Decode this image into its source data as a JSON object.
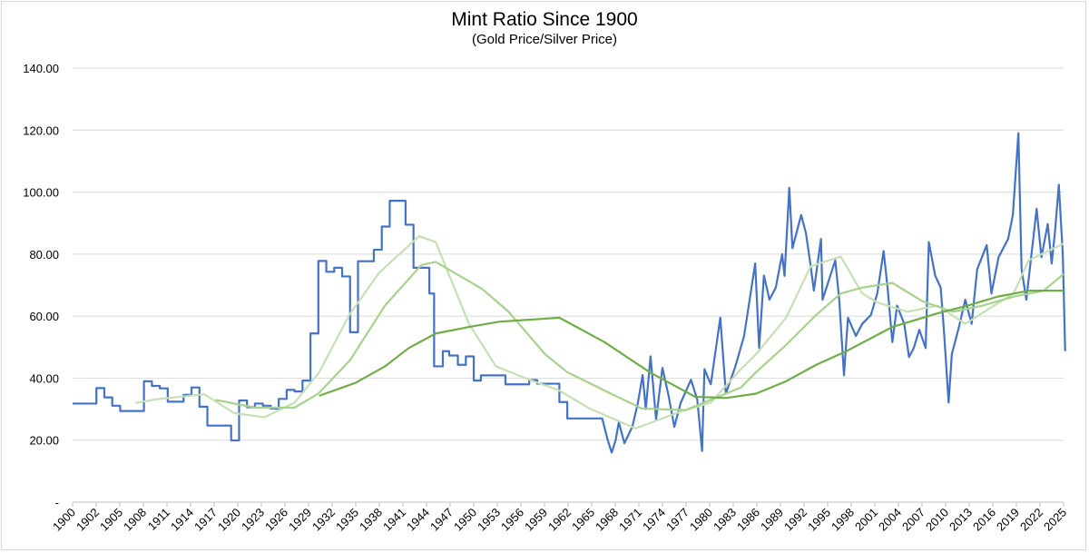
{
  "chart_data": {
    "type": "line",
    "title": "Mint Ratio Since 1900",
    "subtitle": "(Gold Price/Silver Price)",
    "xlabel": "",
    "ylabel": "",
    "ylim": [
      0,
      140
    ],
    "y_ticks": [
      "-",
      "20.00",
      "40.00",
      "60.00",
      "80.00",
      "100.00",
      "120.00",
      "140.00"
    ],
    "x_ticks": [
      "1900",
      "1902",
      "1905",
      "1908",
      "1911",
      "1914",
      "1917",
      "1920",
      "1923",
      "1926",
      "1929",
      "1932",
      "1935",
      "1938",
      "1941",
      "1944",
      "1947",
      "1950",
      "1953",
      "1956",
      "1959",
      "1962",
      "1965",
      "1968",
      "1971",
      "1974",
      "1977",
      "1980",
      "1983",
      "1986",
      "1989",
      "1992",
      "1995",
      "1998",
      "2001",
      "2004",
      "2007",
      "2010",
      "2013",
      "2016",
      "2019",
      "2022",
      "2025"
    ],
    "xlim": [
      1900,
      2025
    ],
    "grid": true,
    "legend": "none",
    "series": [
      {
        "color": "#4472C4",
        "step_until": 1967,
        "points": [
          [
            1900,
            31.8
          ],
          [
            1903,
            36.8
          ],
          [
            1904,
            33.8
          ],
          [
            1905,
            31.1
          ],
          [
            1906,
            29.4
          ],
          [
            1909,
            39.0
          ],
          [
            1910,
            37.5
          ],
          [
            1911,
            36.7
          ],
          [
            1912,
            32.4
          ],
          [
            1914,
            34.6
          ],
          [
            1915,
            37.0
          ],
          [
            1916,
            30.8
          ],
          [
            1917,
            24.7
          ],
          [
            1920,
            19.9
          ],
          [
            1921,
            32.8
          ],
          [
            1922,
            30.6
          ],
          [
            1923,
            31.8
          ],
          [
            1924,
            31.1
          ],
          [
            1925,
            30.2
          ],
          [
            1926,
            33.3
          ],
          [
            1927,
            36.2
          ],
          [
            1928,
            35.7
          ],
          [
            1929,
            39.2
          ],
          [
            1930,
            54.4
          ],
          [
            1931,
            77.8
          ],
          [
            1932,
            74.3
          ],
          [
            1933,
            75.6
          ],
          [
            1934,
            72.8
          ],
          [
            1935,
            54.8
          ],
          [
            1936,
            77.7
          ],
          [
            1938,
            81.4
          ],
          [
            1939,
            88.9
          ],
          [
            1940,
            97.2
          ],
          [
            1942,
            89.5
          ],
          [
            1943,
            75.6
          ],
          [
            1945,
            67.3
          ],
          [
            1945.6,
            43.8
          ],
          [
            1946.7,
            48.7
          ],
          [
            1947.5,
            47.3
          ],
          [
            1948.6,
            44.3
          ],
          [
            1949.6,
            47.0
          ],
          [
            1950.6,
            39.2
          ],
          [
            1951.5,
            40.9
          ],
          [
            1954.6,
            38.0
          ],
          [
            1957.6,
            39.4
          ],
          [
            1958.6,
            38.2
          ],
          [
            1961.4,
            32.3
          ],
          [
            1962.4,
            27.0
          ],
          [
            1966.8,
            27.0
          ],
          [
            1967.5,
            20
          ],
          [
            1968,
            16.0
          ],
          [
            1968.5,
            20
          ],
          [
            1968.9,
            25.8
          ],
          [
            1969.6,
            19.0
          ],
          [
            1970.6,
            24.3
          ],
          [
            1971.3,
            32
          ],
          [
            1971.9,
            41
          ],
          [
            1972.3,
            30
          ],
          [
            1972.9,
            47
          ],
          [
            1973.6,
            26.7
          ],
          [
            1974.4,
            43.3
          ],
          [
            1975.2,
            34
          ],
          [
            1975.9,
            24.3
          ],
          [
            1976.7,
            32
          ],
          [
            1978,
            39.5
          ],
          [
            1978.8,
            33
          ],
          [
            1979.4,
            16.5
          ],
          [
            1979.7,
            42.9
          ],
          [
            1980.5,
            38
          ],
          [
            1981.7,
            59.5
          ],
          [
            1982.4,
            35
          ],
          [
            1983.6,
            43.8
          ],
          [
            1984.7,
            53.6
          ],
          [
            1986.1,
            77
          ],
          [
            1986.6,
            49.7
          ],
          [
            1987.2,
            73.1
          ],
          [
            1987.9,
            65.3
          ],
          [
            1988.7,
            69.2
          ],
          [
            1989.5,
            80
          ],
          [
            1989.8,
            73
          ],
          [
            1990.4,
            101.4
          ],
          [
            1990.8,
            81.9
          ],
          [
            1991.9,
            92.6
          ],
          [
            1992.5,
            86.8
          ],
          [
            1993.1,
            76.1
          ],
          [
            1993.5,
            68.2
          ],
          [
            1994.4,
            84.9
          ],
          [
            1994.6,
            65.3
          ],
          [
            1996.2,
            78
          ],
          [
            1996.7,
            65.3
          ],
          [
            1997.3,
            40.9
          ],
          [
            1997.8,
            59.5
          ],
          [
            1998.8,
            53.6
          ],
          [
            1999.6,
            57.5
          ],
          [
            2000.7,
            60.4
          ],
          [
            2001.5,
            67.3
          ],
          [
            2002.3,
            81
          ],
          [
            2002.8,
            69.2
          ],
          [
            2003.4,
            51.6
          ],
          [
            2004,
            63.4
          ],
          [
            2004.9,
            57.5
          ],
          [
            2005.5,
            46.8
          ],
          [
            2006.1,
            49.7
          ],
          [
            2006.8,
            55.6
          ],
          [
            2007.6,
            49.7
          ],
          [
            2008,
            83.9
          ],
          [
            2008.8,
            73.1
          ],
          [
            2009.5,
            69.2
          ],
          [
            2009.9,
            55.6
          ],
          [
            2010.5,
            32.1
          ],
          [
            2010.9,
            47.7
          ],
          [
            2011.8,
            56.5
          ],
          [
            2012.6,
            65.3
          ],
          [
            2013.4,
            57.5
          ],
          [
            2014.1,
            75.1
          ],
          [
            2015.3,
            82.9
          ],
          [
            2015.9,
            67.3
          ],
          [
            2016.8,
            79
          ],
          [
            2018,
            84.9
          ],
          [
            2018.6,
            92.6
          ],
          [
            2019.3,
            119
          ],
          [
            2019.7,
            75.1
          ],
          [
            2020.3,
            65.3
          ],
          [
            2021.6,
            94.6
          ],
          [
            2022.2,
            79
          ],
          [
            2023,
            89.7
          ],
          [
            2023.5,
            77
          ],
          [
            2023.9,
            86.8
          ],
          [
            2024.4,
            102.4
          ],
          [
            2024.9,
            80
          ],
          [
            2025.2,
            48.7
          ]
        ]
      },
      {
        "color": "#C5E0B4",
        "points": [
          [
            1907.9,
            32
          ],
          [
            1910.9,
            33.3
          ],
          [
            1916.6,
            34.8
          ],
          [
            1920.4,
            28.7
          ],
          [
            1924.2,
            27.4
          ],
          [
            1928,
            32.1
          ],
          [
            1931.1,
            41.9
          ],
          [
            1934.9,
            60.4
          ],
          [
            1938.7,
            74.1
          ],
          [
            1943.7,
            85.8
          ],
          [
            1945.8,
            83.9
          ],
          [
            1950,
            57.5
          ],
          [
            1953.4,
            43.8
          ],
          [
            1957.6,
            39.5
          ],
          [
            1961.4,
            36
          ],
          [
            1965.2,
            30.2
          ],
          [
            1971,
            23.8
          ],
          [
            1976.7,
            29.2
          ],
          [
            1980.5,
            32.1
          ],
          [
            1984.3,
            42.9
          ],
          [
            1986.2,
            47.7
          ],
          [
            1990,
            59.5
          ],
          [
            1993.1,
            76.1
          ],
          [
            1996.9,
            79.2
          ],
          [
            1999.6,
            67.3
          ],
          [
            2001.5,
            64.4
          ],
          [
            2005.3,
            61.4
          ],
          [
            2009.1,
            63.4
          ],
          [
            2012.6,
            57.5
          ],
          [
            2015.6,
            62.4
          ],
          [
            2018.7,
            67.3
          ],
          [
            2020.6,
            78
          ],
          [
            2025,
            83.4
          ]
        ]
      },
      {
        "color": "#A9D18E",
        "points": [
          [
            1918,
            33
          ],
          [
            1923,
            30.5
          ],
          [
            1928,
            30.5
          ],
          [
            1931,
            35
          ],
          [
            1935,
            45.8
          ],
          [
            1939.4,
            63.4
          ],
          [
            1944,
            76.5
          ],
          [
            1945.8,
            77.5
          ],
          [
            1951.7,
            68.7
          ],
          [
            1955,
            61.4
          ],
          [
            1959.6,
            47.7
          ],
          [
            1962.4,
            41.9
          ],
          [
            1967.9,
            35
          ],
          [
            1971.8,
            30.2
          ],
          [
            1977.3,
            29.7
          ],
          [
            1980.5,
            33
          ],
          [
            1984.3,
            37
          ],
          [
            1986.2,
            41.9
          ],
          [
            1990,
            50.7
          ],
          [
            1993.8,
            60.4
          ],
          [
            1996.9,
            67.3
          ],
          [
            1999.6,
            69.2
          ],
          [
            2003.4,
            70.7
          ],
          [
            2007.2,
            64.8
          ],
          [
            2011,
            61.4
          ],
          [
            2014.8,
            63.4
          ],
          [
            2018.7,
            66.3
          ],
          [
            2022.5,
            68.2
          ],
          [
            2025,
            73.6
          ]
        ]
      },
      {
        "color": "#70AD47",
        "points": [
          [
            1931.1,
            34.3
          ],
          [
            1935.7,
            38.5
          ],
          [
            1939.4,
            43.8
          ],
          [
            1942.4,
            49.7
          ],
          [
            1945.8,
            54.4
          ],
          [
            1950,
            56.5
          ],
          [
            1953.8,
            58.2
          ],
          [
            1961.4,
            59.5
          ],
          [
            1967.1,
            51.6
          ],
          [
            1972.8,
            41.9
          ],
          [
            1978.5,
            34
          ],
          [
            1982.4,
            33.6
          ],
          [
            1986.2,
            35
          ],
          [
            1990,
            39
          ],
          [
            1993.8,
            44.3
          ],
          [
            1997.6,
            48.7
          ],
          [
            2003.4,
            56.5
          ],
          [
            2009.1,
            60.9
          ],
          [
            2012.9,
            63.4
          ],
          [
            2016.7,
            66.3
          ],
          [
            2020.6,
            68.2
          ],
          [
            2025,
            68.2
          ]
        ]
      }
    ]
  }
}
